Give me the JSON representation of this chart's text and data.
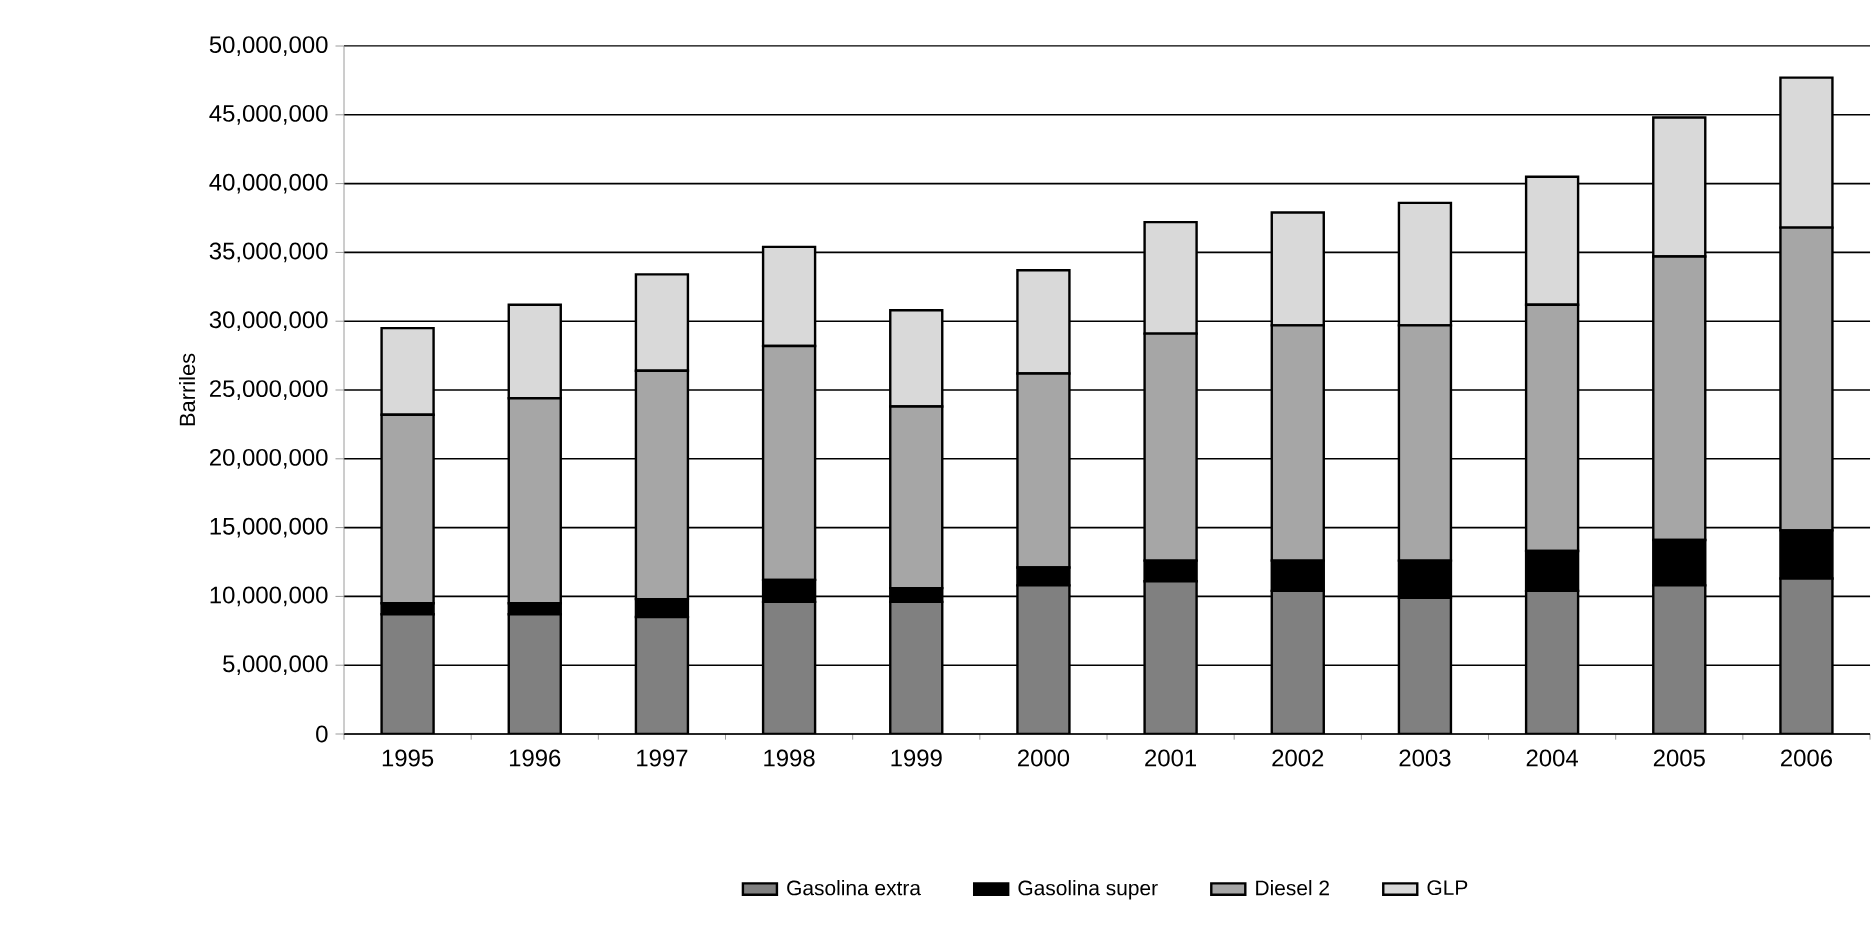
{
  "chart_data": {
    "type": "bar",
    "stacked": true,
    "ylabel": "Barriles",
    "categories": [
      "1995",
      "1996",
      "1997",
      "1998",
      "1999",
      "2000",
      "2001",
      "2002",
      "2003",
      "2004",
      "2005",
      "2006"
    ],
    "series": [
      {
        "name": "Gasolina extra",
        "color": "#808080",
        "values": [
          8700000,
          8700000,
          8500000,
          9600000,
          9600000,
          10800000,
          11100000,
          10400000,
          9900000,
          10400000,
          10800000,
          11300000
        ]
      },
      {
        "name": "Gasolina super",
        "color": "#000000",
        "values": [
          800000,
          800000,
          1300000,
          1600000,
          1000000,
          1300000,
          1500000,
          2200000,
          2700000,
          2900000,
          3300000,
          3500000
        ]
      },
      {
        "name": "Diesel 2",
        "color": "#a6a6a6",
        "values": [
          13700000,
          14900000,
          16600000,
          17000000,
          13200000,
          14100000,
          16500000,
          17100000,
          17100000,
          17900000,
          20600000,
          22000000
        ]
      },
      {
        "name": "GLP",
        "color": "#d9d9d9",
        "values": [
          6300000,
          6800000,
          7000000,
          7200000,
          7000000,
          7500000,
          8100000,
          8200000,
          8900000,
          9300000,
          10100000,
          10900000
        ]
      }
    ],
    "ylim": [
      0,
      50000000
    ],
    "yticks": [
      0,
      {
        "value": 5000000,
        "label": "5,000,000"
      },
      {
        "value": 10000000,
        "label": "10,000,000"
      },
      {
        "value": 15000000,
        "label": "15,000,000"
      },
      {
        "value": 20000000,
        "label": "20,000,000"
      },
      {
        "value": 25000000,
        "label": "25,000,000"
      },
      {
        "value": 30000000,
        "label": "30,000,000"
      },
      {
        "value": 35000000,
        "label": "35,000,000"
      },
      {
        "value": 40000000,
        "label": "40,000,000"
      },
      {
        "value": 45000000,
        "label": "45,000,000"
      },
      {
        "value": 50000000,
        "label": "50,000,000"
      }
    ],
    "grid": "y",
    "legend": "bottom"
  }
}
